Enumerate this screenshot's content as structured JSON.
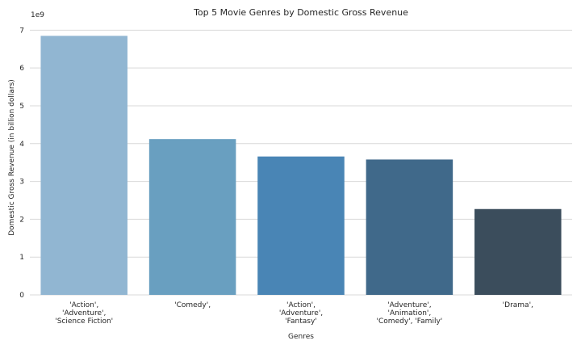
{
  "chart_data": {
    "type": "bar",
    "title": "Top 5 Movie Genres by Domestic Gross Revenue",
    "xlabel": "Genres",
    "ylabel": "Domestic Gross Revenue (in billion dollars)",
    "y_offset_label": "1e9",
    "categories": [
      [
        "'Action',",
        "'Adventure',",
        "'Science Fiction'"
      ],
      [
        "'Comedy',"
      ],
      [
        "'Action',",
        "'Adventure',",
        "'Fantasy'"
      ],
      [
        "'Adventure',",
        "'Animation',",
        "'Comedy', 'Family'"
      ],
      [
        "'Drama',"
      ]
    ],
    "values": [
      6.85,
      4.12,
      3.66,
      3.58,
      2.27
    ],
    "value_scale": 1000000000,
    "ylim": [
      0,
      7.2
    ],
    "yticks": [
      0,
      1,
      2,
      3,
      4,
      5,
      6,
      7
    ],
    "grid": true,
    "colors": [
      "#91b6d2",
      "#699fc0",
      "#4985b5",
      "#40698a",
      "#3b4d5c"
    ]
  }
}
